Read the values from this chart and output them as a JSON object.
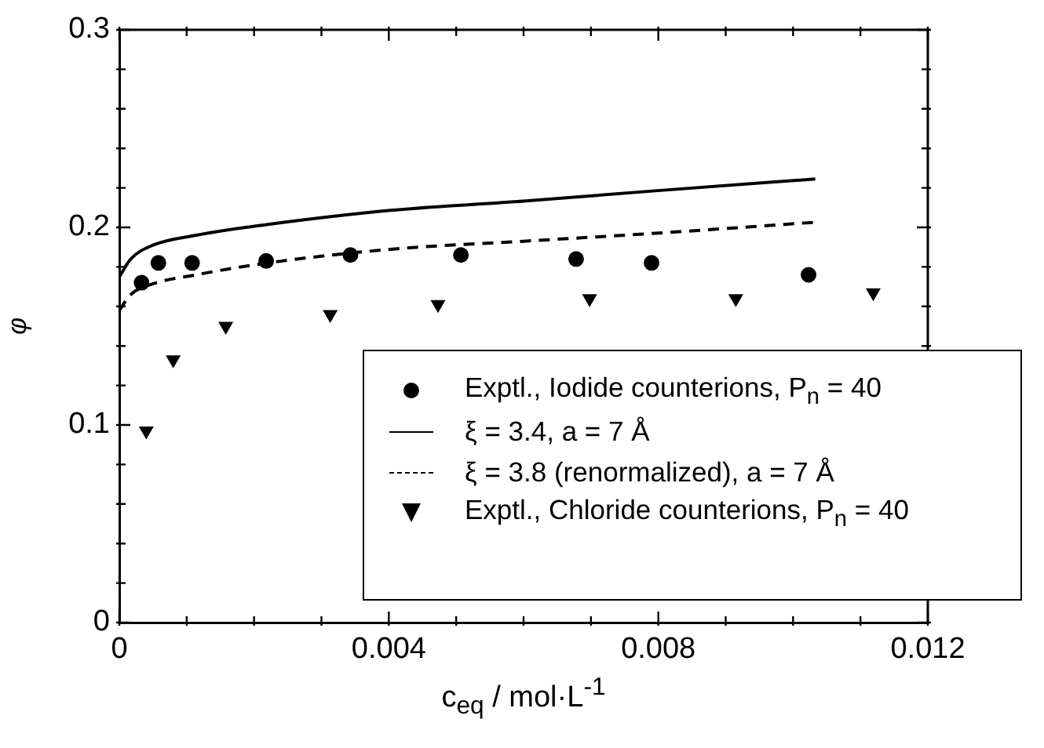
{
  "chart_data": {
    "type": "scatter",
    "xlabel": "c$_{eq}$ / mol·L$^{-1}$",
    "ylabel": "φ",
    "xlim": [
      0,
      0.012
    ],
    "ylim": [
      0,
      0.3
    ],
    "xticks": [
      0,
      {
        "value": 0.001,
        "label": null
      },
      {
        "value": 0.002,
        "label": null
      },
      {
        "value": 0.003,
        "label": null
      },
      0.004,
      {
        "value": 0.005,
        "label": null
      },
      {
        "value": 0.006,
        "label": null
      },
      {
        "value": 0.007,
        "label": null
      },
      0.008,
      {
        "value": 0.009,
        "label": null
      },
      {
        "value": 0.01,
        "label": null
      },
      {
        "value": 0.011,
        "label": null
      },
      0.012
    ],
    "yticks": [
      0,
      {
        "value": 0.02,
        "label": null
      },
      {
        "value": 0.04,
        "label": null
      },
      {
        "value": 0.06,
        "label": null
      },
      {
        "value": 0.08,
        "label": null
      },
      0.1,
      {
        "value": 0.12,
        "label": null
      },
      {
        "value": 0.14,
        "label": null
      },
      {
        "value": 0.16,
        "label": null
      },
      {
        "value": 0.18,
        "label": null
      },
      0.2,
      {
        "value": 0.22,
        "label": null
      },
      {
        "value": 0.24,
        "label": null
      },
      {
        "value": 0.26,
        "label": null
      },
      {
        "value": 0.28,
        "label": null
      },
      0.3
    ],
    "grid": false,
    "legend": "bottom right",
    "series": [
      {
        "name": "Exptl., Iodide counterions, P$_{n}$ = 40",
        "marker": "circle",
        "color": "#000000",
        "x": [
          0.00033,
          0.00058,
          0.00108,
          0.00218,
          0.00343,
          0.00507,
          0.00678,
          0.0079,
          0.01023
        ],
        "values": [
          0.172,
          0.182,
          0.182,
          0.183,
          0.186,
          0.186,
          0.184,
          0.182,
          0.176
        ]
      },
      {
        "name": "ξ = 3.4, a = 7 Å",
        "type": "line",
        "marker": "none",
        "line_style": "solid",
        "color": "#000000",
        "x": [
          0,
          0.00017,
          0.0005,
          0.00114,
          0.0021,
          0.00406,
          0.006,
          0.00795,
          0.01033
        ],
        "values": [
          0.175,
          0.184,
          0.191,
          0.196,
          0.201,
          0.2087,
          0.2133,
          0.2185,
          0.2245
        ]
      },
      {
        "name": "ξ = 3.8 (renormalized), a = 7 Å",
        "type": "line",
        "marker": "none",
        "line_style": "dashed",
        "color": "#000000",
        "x": [
          0,
          0.00017,
          0.00046,
          0.00114,
          0.0022,
          0.00406,
          0.006,
          0.00795,
          0.01033
        ],
        "values": [
          0.158,
          0.166,
          0.171,
          0.176,
          0.182,
          0.189,
          0.193,
          0.197,
          0.2026
        ]
      },
      {
        "name": "Exptl., Chloride counterions, P$_{n}$ = 40",
        "marker": "triangle",
        "color": "#000000",
        "x": [
          0.0004,
          0.0008,
          0.00158,
          0.00313,
          0.00473,
          0.00698,
          0.00915,
          0.01119
        ],
        "values": [
          0.097,
          0.133,
          0.15,
          0.156,
          0.161,
          0.164,
          0.164,
          0.167
        ]
      }
    ]
  }
}
